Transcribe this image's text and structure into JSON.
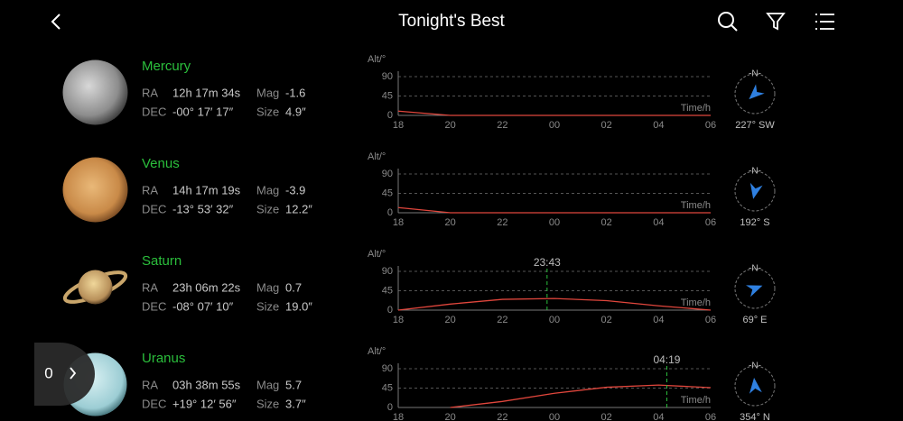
{
  "header": {
    "title": "Tonight's Best"
  },
  "side_tab": {
    "count": "0"
  },
  "objects": [
    {
      "name": "Mercury",
      "ra_label": "RA",
      "ra": "12h 17m 34s",
      "mag_label": "Mag",
      "mag": "-1.6",
      "dec_label": "DEC",
      "dec": "-00° 17′ 17″",
      "size_label": "Size",
      "size": "4.9″",
      "compass": "-N-",
      "azimuth": "227° SW",
      "chart": {
        "y_label": "Alt/°",
        "x_label": "Time/h",
        "ylim": [
          0,
          90
        ],
        "yticks": [
          0,
          45,
          90
        ],
        "xticks": [
          "18",
          "20",
          "22",
          "00",
          "02",
          "04",
          "06"
        ],
        "altitude": [
          10,
          0,
          0,
          0,
          0,
          0,
          0
        ]
      }
    },
    {
      "name": "Venus",
      "ra_label": "RA",
      "ra": "14h 17m 19s",
      "mag_label": "Mag",
      "mag": "-3.9",
      "dec_label": "DEC",
      "dec": "-13° 53′ 32″",
      "size_label": "Size",
      "size": "12.2″",
      "compass": "-N-",
      "azimuth": "192° S",
      "chart": {
        "y_label": "Alt/°",
        "x_label": "Time/h",
        "ylim": [
          0,
          90
        ],
        "yticks": [
          0,
          45,
          90
        ],
        "xticks": [
          "18",
          "20",
          "22",
          "00",
          "02",
          "04",
          "06"
        ],
        "altitude": [
          12,
          0,
          0,
          0,
          0,
          0,
          0
        ]
      }
    },
    {
      "name": "Saturn",
      "ra_label": "RA",
      "ra": "23h 06m 22s",
      "mag_label": "Mag",
      "mag": "0.7",
      "dec_label": "DEC",
      "dec": "-08° 07′ 10″",
      "size_label": "Size",
      "size": "19.0″",
      "compass": "-N-",
      "azimuth": "69° E",
      "chart": {
        "y_label": "Alt/°",
        "x_label": "Time/h",
        "ylim": [
          0,
          90
        ],
        "yticks": [
          0,
          45,
          90
        ],
        "xticks": [
          "18",
          "20",
          "22",
          "00",
          "02",
          "04",
          "06"
        ],
        "altitude": [
          0,
          14,
          25,
          27,
          22,
          10,
          0
        ],
        "peak": "23:43"
      }
    },
    {
      "name": "Uranus",
      "ra_label": "RA",
      "ra": "03h 38m 55s",
      "mag_label": "Mag",
      "mag": "5.7",
      "dec_label": "DEC",
      "dec": "+19° 12′ 56″",
      "size_label": "Size",
      "size": "3.7″",
      "compass": "-N-",
      "azimuth": "354° N",
      "chart": {
        "y_label": "Alt/°",
        "x_label": "Time/h",
        "ylim": [
          0,
          90
        ],
        "yticks": [
          0,
          45,
          90
        ],
        "xticks": [
          "18",
          "20",
          "22",
          "00",
          "02",
          "04",
          "06"
        ],
        "altitude": [
          null,
          0,
          14,
          33,
          47,
          52,
          46
        ],
        "peak": "04:19"
      }
    }
  ]
}
